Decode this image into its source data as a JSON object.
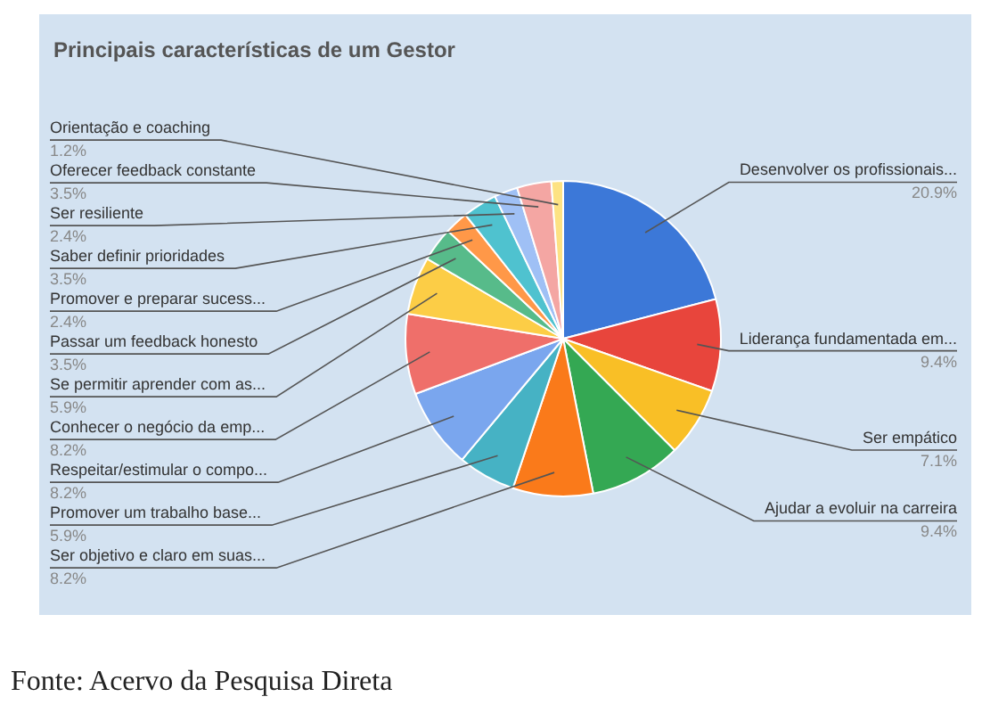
{
  "chart_data": {
    "type": "pie",
    "title": "Principais características de um Gestor",
    "categories": [
      "Desenvolver os profissionais...",
      "Liderança fundamentada em...",
      "Ser empático",
      "Ajudar a evoluir na carreira",
      "Ser objetivo e claro em suas...",
      "Promover um trabalho base...",
      "Respeitar/estimular o compo...",
      "Conhecer o negócio da emp...",
      "Se permitir aprender com as...",
      "Passar um feedback honesto",
      "Promover e preparar sucess...",
      "Saber definir prioridades",
      "Ser resiliente",
      "Oferecer feedback constante",
      "Orientação e coaching"
    ],
    "values": [
      20.9,
      9.4,
      7.1,
      9.4,
      8.2,
      5.9,
      8.2,
      8.2,
      5.9,
      3.5,
      2.4,
      3.5,
      2.4,
      3.5,
      1.2
    ],
    "value_labels": [
      "20.9%",
      "9.4%",
      "7.1%",
      "9.4%",
      "8.2%",
      "5.9%",
      "8.2%",
      "8.2%",
      "5.9%",
      "3.5%",
      "2.4%",
      "3.5%",
      "2.4%",
      "3.5%",
      "1.2%"
    ],
    "colors": [
      "#3c78d8",
      "#e8453c",
      "#f9bf26",
      "#34a853",
      "#fa7a1a",
      "#46b2c4",
      "#7aa6ee",
      "#ef6f6a",
      "#fccd46",
      "#57bb8a",
      "#ff9848",
      "#4fc2cf",
      "#9fc0f5",
      "#f4a6a3",
      "#fde283"
    ],
    "legend": false,
    "annotations": [
      "Fonte: Acervo da Pesquisa Direta"
    ]
  }
}
